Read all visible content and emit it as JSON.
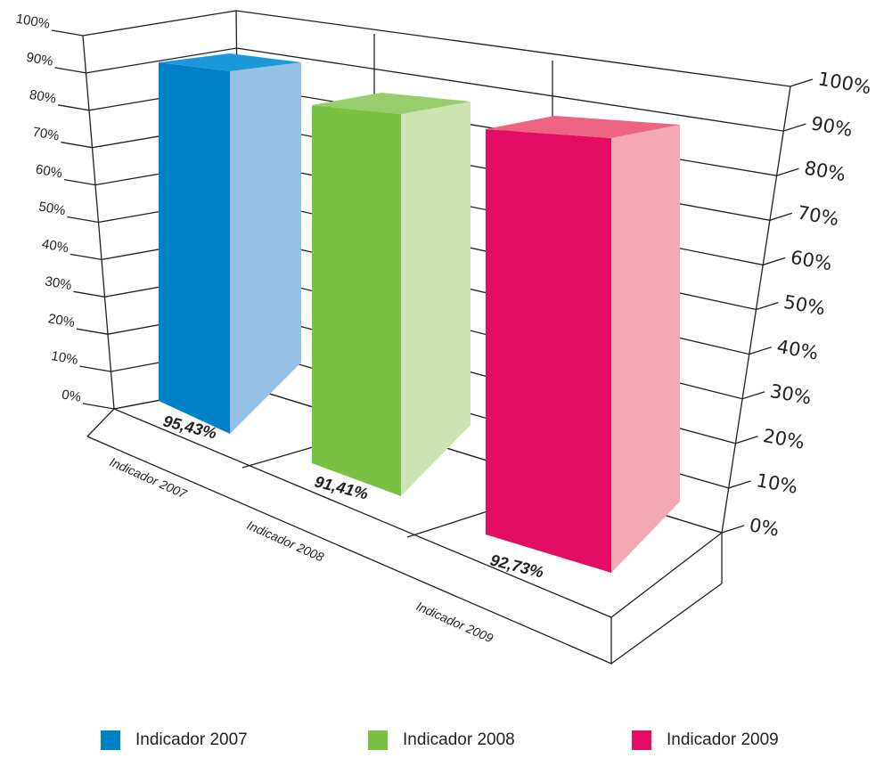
{
  "chart_data": {
    "type": "bar",
    "categories": [
      "Indicador 2007",
      "Indicador 2008",
      "Indicador 2009"
    ],
    "values": [
      95.43,
      91.41,
      92.73
    ],
    "data_labels": [
      "95,43%",
      "91,41%",
      "92,73%"
    ],
    "y_ticks": [
      "0%",
      "10%",
      "20%",
      "30%",
      "40%",
      "50%",
      "60%",
      "70%",
      "80%",
      "90%",
      "100%"
    ],
    "ylim": [
      0,
      100
    ],
    "grid": true,
    "legend_position": "bottom",
    "colors": {
      "Indicador 2007": {
        "front": "#0080c6",
        "side": "#97c0e6",
        "top": "#1b98d8"
      },
      "Indicador 2008": {
        "front": "#7ac143",
        "side": "#cbe4b2",
        "top": "#97cd6c"
      },
      "Indicador 2009": {
        "front": "#e30e63",
        "side": "#f3a8b4",
        "top": "#ec6481"
      }
    }
  },
  "legend": [
    {
      "label": "Indicador 2007",
      "color": "#0080c6"
    },
    {
      "label": "Indicador 2008",
      "color": "#7ac143"
    },
    {
      "label": "Indicador 2009",
      "color": "#e30e63"
    }
  ]
}
